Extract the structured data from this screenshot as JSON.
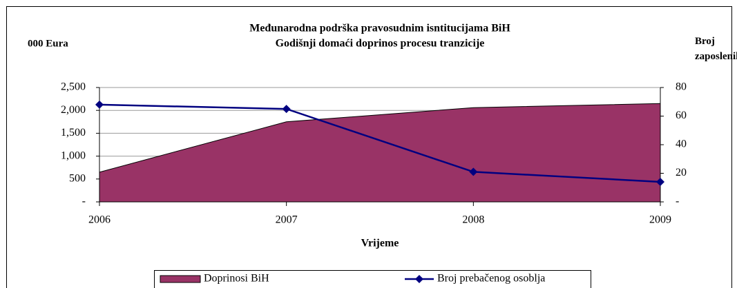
{
  "chart_data": {
    "type": "area-line",
    "title": "Međunarodna podrška pravosudnim isntitucijama BiH",
    "subtitle": "Godišnji domaći doprinos procesu tranzicije",
    "ylabel": "000 Eura",
    "y2label": "Broj zaposlenih",
    "xlabel": "Vrijeme",
    "categories": [
      "2006",
      "2007",
      "2008",
      "2009"
    ],
    "series": [
      {
        "name": "Doprinosi BiH",
        "type": "area",
        "color": "#993366",
        "values": [
          650,
          1750,
          2060,
          2150
        ]
      },
      {
        "name": "Broj prebačenog osoblja",
        "type": "line",
        "color": "#000080",
        "axis": "y2",
        "values": [
          68,
          65,
          21,
          14
        ]
      }
    ],
    "ylim": [
      0,
      2500
    ],
    "yticks": [
      {
        "value": 0,
        "label": "-"
      },
      {
        "value": 500,
        "label": "500"
      },
      {
        "value": 1000,
        "label": "1,000"
      },
      {
        "value": 1500,
        "label": "1,500"
      },
      {
        "value": 2000,
        "label": "2,000"
      },
      {
        "value": 2500,
        "label": "2,500"
      }
    ],
    "y2lim": [
      0,
      80
    ],
    "y2ticks": [
      {
        "value": 0,
        "label": "-"
      },
      20,
      40,
      60,
      80
    ],
    "grid": true,
    "legend": "bottom"
  }
}
